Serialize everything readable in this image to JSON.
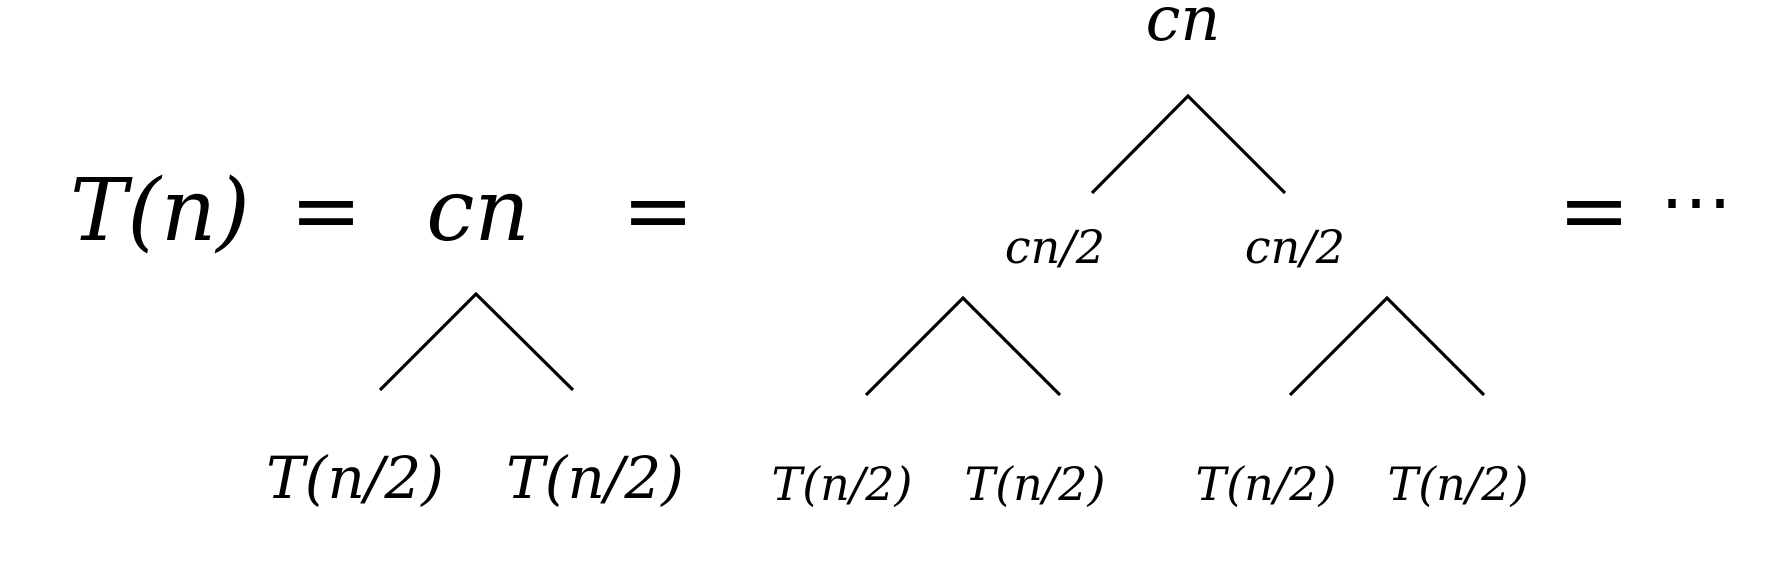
{
  "equation": {
    "lhs": "T(n)",
    "equals": "=",
    "ellipsis": "⋯"
  },
  "tree_level1": {
    "root": "cn",
    "leaves": [
      "T(n/2)",
      "T(n/2)"
    ]
  },
  "tree_level2": {
    "root": "cn",
    "children": [
      "cn/2",
      "cn/2"
    ],
    "leaves": [
      "T(n/2)",
      "T(n/2)",
      "T(n/2)",
      "T(n/2)"
    ]
  }
}
